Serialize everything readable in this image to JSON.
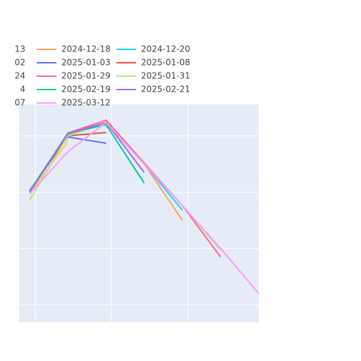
{
  "chart_data": {
    "type": "line",
    "x": [
      0,
      1,
      2,
      3,
      4,
      5,
      6
    ],
    "xlim": [
      -0.28,
      6
    ],
    "xticks": [
      0.15,
      2.14,
      4.15
    ],
    "ylim": [
      -0.31,
      3.56
    ],
    "yticks": [
      0,
      1,
      2,
      3
    ],
    "grid": true,
    "series": [
      {
        "name": "13",
        "color": "#AB63FA",
        "values": [
          null,
          null,
          null,
          null,
          null,
          null,
          null
        ]
      },
      {
        "name": "2024-12-18",
        "color": "#FFA15A",
        "values": [
          2.0,
          3.02,
          3.24,
          2.5,
          1.5,
          null,
          null
        ]
      },
      {
        "name": "2024-12-20",
        "color": "#19D3F3",
        "values": [
          2.0,
          3.03,
          3.22,
          2.5,
          1.68,
          null,
          null
        ]
      },
      {
        "name": "02",
        "color": "#FECB52",
        "values": [
          1.97,
          2.9,
          null,
          null,
          null,
          null,
          null
        ]
      },
      {
        "name": "2025-01-03",
        "color": "#636EFA",
        "values": [
          2.03,
          2.98,
          2.87,
          null,
          null,
          null,
          null
        ]
      },
      {
        "name": "2025-01-08",
        "color": "#EF553B",
        "values": [
          2.02,
          3.0,
          3.06,
          null,
          null,
          null,
          null
        ]
      },
      {
        "name": "24",
        "color": "#19D3F3",
        "values": [
          null,
          null,
          null,
          null,
          null,
          null,
          null
        ]
      },
      {
        "name": "2025-01-29",
        "color": "#FF6692",
        "values": [
          2.0,
          3.05,
          3.28,
          2.52,
          1.76,
          0.85,
          null
        ]
      },
      {
        "name": "2025-01-31",
        "color": "#B6E880",
        "values": [
          1.86,
          3.0,
          3.22,
          2.5,
          1.76,
          0.97,
          null
        ]
      },
      {
        "name": "4",
        "color": "#636EFA",
        "values": [
          null,
          null,
          null,
          null,
          null,
          null,
          null
        ]
      },
      {
        "name": "2025-02-19",
        "color": "#00CC96",
        "values": [
          2.02,
          3.05,
          3.2,
          2.16,
          null,
          null,
          null
        ]
      },
      {
        "name": "2025-02-21",
        "color": "#AB63FA",
        "values": [
          2.0,
          3.04,
          3.24,
          2.35,
          null,
          null,
          null
        ]
      },
      {
        "name": "07",
        "color": "#FF6692",
        "values": [
          null,
          null,
          null,
          null,
          null,
          null,
          null
        ]
      },
      {
        "name": "2025-03-12",
        "color": "#FF97FF",
        "values": [
          1.97,
          2.72,
          3.24,
          2.5,
          1.76,
          1.0,
          0.2
        ]
      }
    ]
  }
}
